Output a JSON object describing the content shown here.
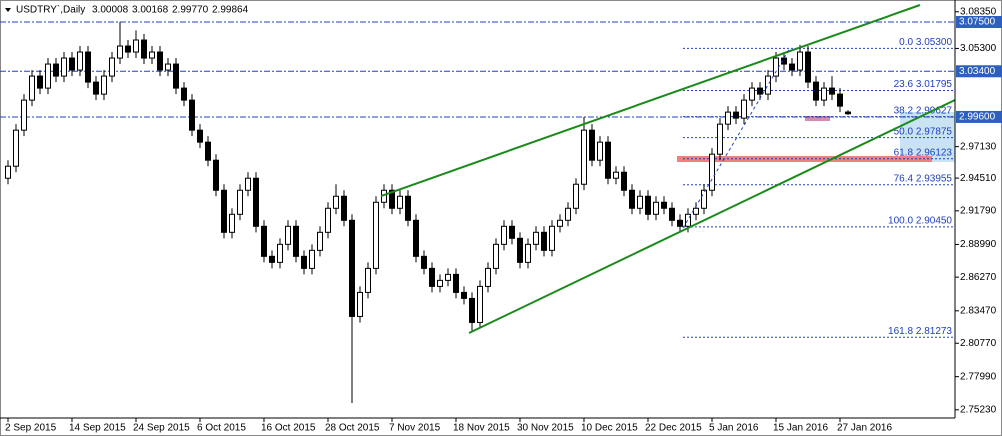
{
  "chart_data": {
    "type": "candlestick",
    "title": "USDTRY`,Daily",
    "quote": [
      "3.00008",
      "3.00168",
      "2.99770",
      "2.99864"
    ],
    "up_color": "#ffffff",
    "down_color": "#000000",
    "ylim": [
      2.7455,
      3.0933
    ],
    "yticks": [
      {
        "value": 3.0835,
        "label": "3.08350"
      },
      {
        "value": 3.053,
        "label": "3.05300"
      },
      {
        "value": 2.9713,
        "label": "2.97130"
      },
      {
        "value": 2.9451,
        "label": "2.94510"
      },
      {
        "value": 2.9179,
        "label": "2.91790"
      },
      {
        "value": 2.8899,
        "label": "2.88990"
      },
      {
        "value": 2.8627,
        "label": "2.86270"
      },
      {
        "value": 2.8347,
        "label": "2.83470"
      },
      {
        "value": 2.8077,
        "label": "2.80770"
      },
      {
        "value": 2.7799,
        "label": "2.77990"
      },
      {
        "value": 2.7523,
        "label": "2.75230"
      }
    ],
    "levels": [
      {
        "value": 3.075,
        "label": "3.07500"
      },
      {
        "value": 3.034,
        "label": "3.03400"
      },
      {
        "value": 2.996,
        "label": "2.99600"
      }
    ],
    "fibonacci": [
      {
        "value": 3.053,
        "label": "0.0 3.05300"
      },
      {
        "value": 3.01795,
        "label": "23.6 3.01795"
      },
      {
        "value": 2.99627,
        "label": "38.2 2.99627"
      },
      {
        "value": 2.97875,
        "label": "50.0 2.97875"
      },
      {
        "value": 2.96123,
        "label": "61.8 2.96123"
      },
      {
        "value": 2.93955,
        "label": "76.4 2.93955"
      },
      {
        "value": 2.9045,
        "label": "100.0 2.90450"
      },
      {
        "value": 2.81273,
        "label": "161.8 2.81273"
      }
    ],
    "categories": [
      "2 Sep 2015",
      null,
      null,
      null,
      null,
      null,
      null,
      null,
      "14 Sep 2015",
      null,
      null,
      null,
      null,
      null,
      null,
      null,
      "24 Sep 2015",
      null,
      null,
      null,
      null,
      null,
      null,
      null,
      "6 Oct 2015",
      null,
      null,
      null,
      null,
      null,
      null,
      null,
      "16 Oct 2015",
      null,
      null,
      null,
      null,
      null,
      null,
      null,
      "28 Oct 2015",
      null,
      null,
      null,
      null,
      null,
      null,
      null,
      "7 Nov 2015",
      null,
      null,
      null,
      null,
      null,
      null,
      null,
      "18 Nov 2015",
      null,
      null,
      null,
      null,
      null,
      null,
      null,
      "30 Nov 2015",
      null,
      null,
      null,
      null,
      null,
      null,
      null,
      "10 Dec 2015",
      null,
      null,
      null,
      null,
      null,
      null,
      null,
      "22 Dec 2015",
      null,
      null,
      null,
      null,
      null,
      null,
      null,
      "5 Jan 2016",
      null,
      null,
      null,
      null,
      null,
      null,
      null,
      "15 Jan 2016",
      null,
      null,
      null,
      null,
      null,
      null,
      null,
      "27 Jan 2016",
      null
    ],
    "open": [
      2.945,
      2.955,
      2.985,
      3.01,
      3.03,
      3.02,
      3.04,
      3.03,
      3.045,
      3.035,
      3.05,
      3.025,
      3.015,
      3.03,
      3.045,
      3.055,
      3.05,
      3.06,
      3.045,
      3.05,
      3.035,
      3.04,
      3.02,
      3.01,
      2.985,
      2.975,
      2.96,
      2.935,
      2.9,
      2.915,
      2.935,
      2.945,
      2.905,
      2.88,
      2.875,
      2.89,
      2.905,
      2.88,
      2.87,
      2.885,
      2.9,
      2.92,
      2.93,
      2.91,
      2.83,
      2.85,
      2.87,
      2.925,
      2.935,
      2.92,
      2.93,
      2.91,
      2.88,
      2.87,
      2.855,
      2.86,
      2.865,
      2.85,
      2.845,
      2.825,
      2.855,
      2.87,
      2.89,
      2.905,
      2.895,
      2.875,
      2.89,
      2.9,
      2.885,
      2.905,
      2.91,
      2.92,
      2.94,
      2.985,
      2.96,
      2.975,
      2.945,
      2.95,
      2.935,
      2.92,
      2.93,
      2.915,
      2.925,
      2.92,
      2.91,
      2.905,
      2.915,
      2.92,
      2.935,
      2.965,
      2.99,
      3.0,
      2.995,
      3.01,
      3.02,
      3.015,
      3.03,
      3.045,
      3.04,
      3.035,
      3.05,
      3.025,
      3.01,
      3.02,
      3.015,
      3.00008
    ],
    "high": [
      2.96,
      2.99,
      3.015,
      3.035,
      3.035,
      3.045,
      3.045,
      3.05,
      3.05,
      3.055,
      3.055,
      3.03,
      3.035,
      3.05,
      3.075,
      3.06,
      3.068,
      3.065,
      3.055,
      3.055,
      3.045,
      3.045,
      3.025,
      3.015,
      2.99,
      2.98,
      2.965,
      2.94,
      2.92,
      2.94,
      2.95,
      2.95,
      2.91,
      2.885,
      2.895,
      2.91,
      2.91,
      2.885,
      2.89,
      2.905,
      2.925,
      2.94,
      2.935,
      2.915,
      2.855,
      2.875,
      2.93,
      2.94,
      2.94,
      2.935,
      2.935,
      2.915,
      2.885,
      2.875,
      2.865,
      2.87,
      2.87,
      2.855,
      2.85,
      2.86,
      2.875,
      2.895,
      2.91,
      2.91,
      2.9,
      2.895,
      2.905,
      2.905,
      2.91,
      2.915,
      2.925,
      2.945,
      2.996,
      2.99,
      2.98,
      2.98,
      2.955,
      2.955,
      2.94,
      2.935,
      2.935,
      2.93,
      2.93,
      2.925,
      2.915,
      2.92,
      2.925,
      2.94,
      2.97,
      2.995,
      3.005,
      3.005,
      3.015,
      3.025,
      3.025,
      3.035,
      3.05,
      3.05,
      3.045,
      3.056,
      3.055,
      3.03,
      3.025,
      3.03,
      3.02,
      3.00168
    ],
    "low": [
      2.94,
      2.95,
      2.98,
      3.005,
      3.015,
      3.015,
      3.025,
      3.025,
      3.03,
      3.03,
      3.02,
      3.01,
      3.01,
      3.025,
      3.04,
      3.045,
      3.045,
      3.04,
      3.04,
      3.03,
      3.03,
      3.015,
      3.005,
      2.98,
      2.97,
      2.955,
      2.93,
      2.895,
      2.895,
      2.91,
      2.93,
      2.9,
      2.875,
      2.87,
      2.87,
      2.885,
      2.875,
      2.865,
      2.865,
      2.88,
      2.895,
      2.915,
      2.905,
      2.758,
      2.825,
      2.845,
      2.865,
      2.92,
      2.915,
      2.915,
      2.905,
      2.875,
      2.865,
      2.85,
      2.85,
      2.855,
      2.845,
      2.84,
      2.818,
      2.82,
      2.85,
      2.865,
      2.885,
      2.89,
      2.87,
      2.87,
      2.885,
      2.88,
      2.88,
      2.9,
      2.905,
      2.915,
      2.935,
      2.955,
      2.955,
      2.94,
      2.94,
      2.93,
      2.915,
      2.915,
      2.91,
      2.91,
      2.915,
      2.905,
      2.9,
      2.9,
      2.91,
      2.915,
      2.93,
      2.96,
      2.985,
      2.99,
      2.99,
      3.005,
      3.01,
      3.01,
      3.025,
      3.035,
      3.03,
      3.03,
      3.02,
      3.005,
      3.005,
      3.01,
      3.0,
      2.9977
    ],
    "close": [
      2.955,
      2.985,
      3.01,
      3.03,
      3.02,
      3.04,
      3.03,
      3.045,
      3.035,
      3.05,
      3.025,
      3.015,
      3.03,
      3.045,
      3.055,
      3.05,
      3.06,
      3.045,
      3.05,
      3.035,
      3.04,
      3.02,
      3.01,
      2.985,
      2.975,
      2.96,
      2.935,
      2.9,
      2.915,
      2.935,
      2.945,
      2.905,
      2.88,
      2.875,
      2.89,
      2.905,
      2.88,
      2.87,
      2.885,
      2.9,
      2.92,
      2.93,
      2.91,
      2.83,
      2.85,
      2.87,
      2.925,
      2.935,
      2.92,
      2.93,
      2.91,
      2.88,
      2.87,
      2.855,
      2.86,
      2.865,
      2.85,
      2.845,
      2.825,
      2.855,
      2.87,
      2.89,
      2.905,
      2.895,
      2.875,
      2.89,
      2.9,
      2.885,
      2.905,
      2.91,
      2.92,
      2.94,
      2.985,
      2.96,
      2.975,
      2.945,
      2.95,
      2.935,
      2.92,
      2.93,
      2.915,
      2.925,
      2.92,
      2.91,
      2.905,
      2.915,
      2.92,
      2.935,
      2.965,
      2.99,
      3.0,
      2.995,
      3.01,
      3.02,
      3.015,
      3.03,
      3.045,
      3.04,
      3.035,
      3.05,
      3.025,
      3.01,
      3.02,
      3.015,
      3.005,
      2.99864
    ]
  }
}
